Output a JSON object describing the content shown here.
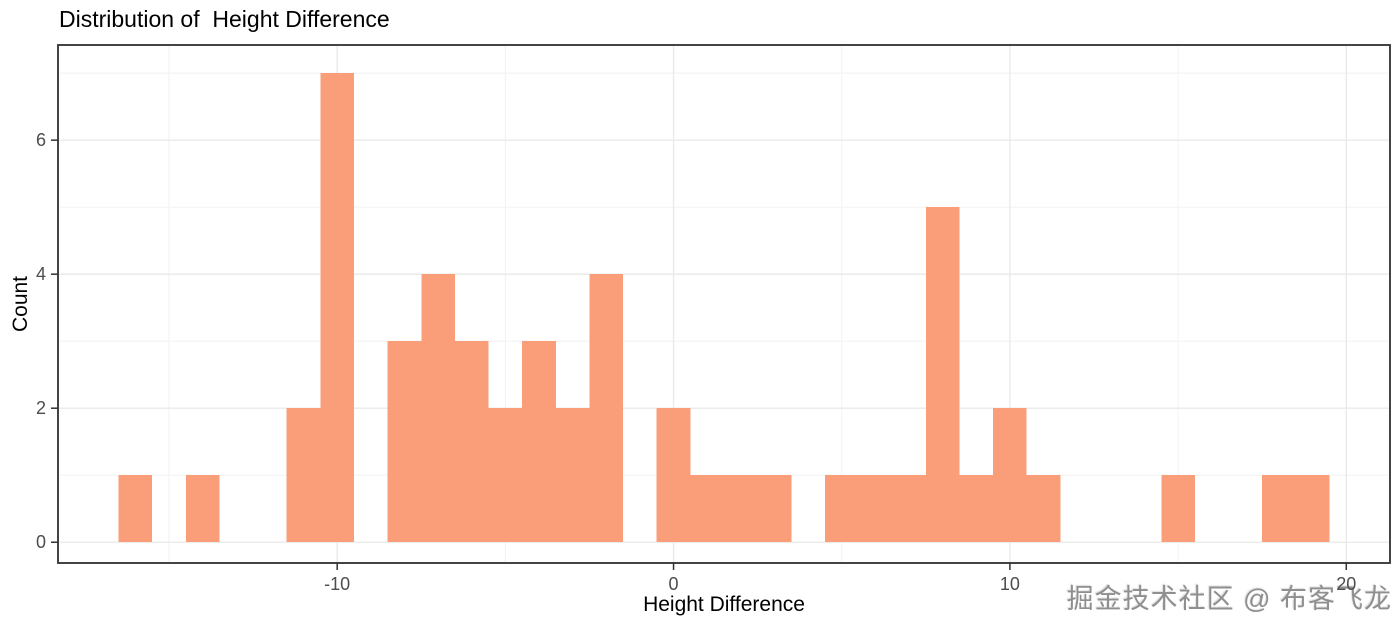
{
  "title": "Distribution of  Height Difference",
  "watermark": "掘金技术社区 @ 布客飞龙",
  "chart_data": {
    "type": "bar",
    "subtype": "histogram",
    "title": "Distribution of  Height Difference",
    "xlabel": "Height Difference",
    "ylabel": "Count",
    "bar_color": "#FA9E79",
    "grid_major_color": "#e9e9e9",
    "grid_minor_color": "#f4f4f4",
    "panel_border_color": "#303030",
    "tick_color": "#333333",
    "tick_label_color": "#4d4d4d",
    "binwidth": 1,
    "xlim": [
      -18.3,
      21.3
    ],
    "ylim": [
      -0.31,
      7.42
    ],
    "x_ticks": [
      -10,
      0,
      10,
      20
    ],
    "x_minor": [
      -15,
      -5,
      5,
      15
    ],
    "y_ticks": [
      0,
      2,
      4,
      6
    ],
    "y_minor": [
      1,
      3,
      5,
      7
    ],
    "legend": "none",
    "grid": "on",
    "bins": [
      {
        "center": -16,
        "count": 1
      },
      {
        "center": -14,
        "count": 1
      },
      {
        "center": -11,
        "count": 2
      },
      {
        "center": -10,
        "count": 7
      },
      {
        "center": -8,
        "count": 3
      },
      {
        "center": -7,
        "count": 4
      },
      {
        "center": -6,
        "count": 3
      },
      {
        "center": -5,
        "count": 2
      },
      {
        "center": -4,
        "count": 3
      },
      {
        "center": -3,
        "count": 2
      },
      {
        "center": -2,
        "count": 4
      },
      {
        "center": 0,
        "count": 2
      },
      {
        "center": 1,
        "count": 1
      },
      {
        "center": 2,
        "count": 1
      },
      {
        "center": 3,
        "count": 1
      },
      {
        "center": 5,
        "count": 1
      },
      {
        "center": 6,
        "count": 1
      },
      {
        "center": 7,
        "count": 1
      },
      {
        "center": 8,
        "count": 5
      },
      {
        "center": 9,
        "count": 1
      },
      {
        "center": 10,
        "count": 2
      },
      {
        "center": 11,
        "count": 1
      },
      {
        "center": 15,
        "count": 1
      },
      {
        "center": 18,
        "count": 1
      },
      {
        "center": 19,
        "count": 1
      }
    ]
  }
}
